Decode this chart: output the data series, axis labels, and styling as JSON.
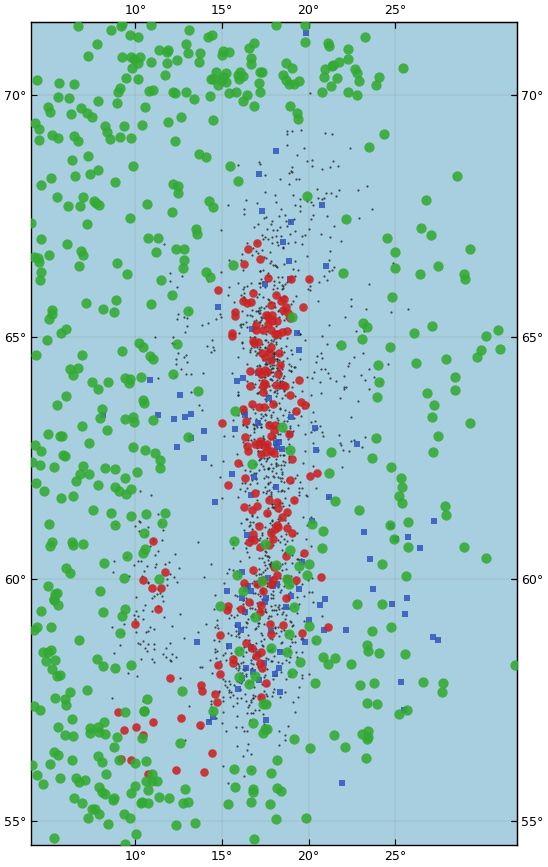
{
  "lon_min": 4.0,
  "lon_max": 32.0,
  "lat_min": 54.5,
  "lat_max": 71.5,
  "xticks": [
    10,
    15,
    20,
    25
  ],
  "yticks": [
    55,
    60,
    65,
    70
  ],
  "ocean_color": "#a8cfe0",
  "land_color": "#f0e8d0",
  "river_color": "#a8cfe0",
  "border_color": "#000000",
  "dot_colors": {
    "black": "#1a1a1a",
    "red": "#cc2222",
    "green": "#33aa33",
    "blue": "#3355bb"
  },
  "figsize": [
    5.48,
    8.67
  ],
  "dpi": 100,
  "centers_black": [
    [
      17.8,
      64.5,
      0.8,
      0.6,
      180
    ],
    [
      17.5,
      63.0,
      0.8,
      0.7,
      160
    ],
    [
      17.2,
      65.8,
      1.0,
      0.8,
      120
    ],
    [
      18.0,
      62.0,
      1.0,
      0.8,
      100
    ],
    [
      17.8,
      60.5,
      1.2,
      0.8,
      130
    ],
    [
      17.5,
      59.5,
      1.2,
      0.7,
      120
    ],
    [
      16.5,
      58.5,
      1.2,
      0.8,
      100
    ],
    [
      18.2,
      59.0,
      1.0,
      0.8,
      80
    ],
    [
      16.0,
      57.5,
      1.2,
      0.8,
      80
    ],
    [
      18.5,
      67.0,
      1.2,
      0.8,
      70
    ],
    [
      19.5,
      68.0,
      1.5,
      0.8,
      60
    ],
    [
      11.0,
      59.0,
      1.0,
      0.8,
      50
    ],
    [
      10.5,
      60.0,
      1.0,
      0.8,
      50
    ],
    [
      13.0,
      65.0,
      1.0,
      0.8,
      40
    ],
    [
      20.5,
      63.5,
      1.5,
      1.0,
      60
    ],
    [
      22.0,
      65.0,
      1.5,
      1.0,
      40
    ]
  ],
  "centers_red": [
    [
      17.8,
      64.5,
      1.0,
      0.7,
      35
    ],
    [
      17.5,
      63.0,
      1.0,
      0.8,
      30
    ],
    [
      17.2,
      65.8,
      1.2,
      0.8,
      25
    ],
    [
      18.0,
      62.0,
      1.0,
      0.8,
      20
    ],
    [
      17.8,
      60.5,
      1.2,
      0.8,
      20
    ],
    [
      17.5,
      59.5,
      1.2,
      0.7,
      18
    ],
    [
      16.5,
      58.5,
      1.2,
      0.8,
      15
    ],
    [
      11.0,
      59.0,
      1.0,
      0.8,
      8
    ],
    [
      10.5,
      56.5,
      0.8,
      0.5,
      8
    ],
    [
      13.5,
      57.0,
      1.0,
      0.7,
      8
    ]
  ],
  "centers_green": [
    [
      6.5,
      62.0,
      3.0,
      2.5,
      90
    ],
    [
      5.0,
      67.0,
      2.0,
      2.0,
      60
    ],
    [
      8.0,
      70.0,
      3.0,
      1.0,
      50
    ],
    [
      15.0,
      70.5,
      3.0,
      0.6,
      45
    ],
    [
      20.0,
      70.5,
      3.0,
      0.6,
      40
    ],
    [
      4.5,
      58.0,
      2.0,
      1.5,
      55
    ],
    [
      8.0,
      56.5,
      2.0,
      1.0,
      35
    ],
    [
      10.0,
      55.5,
      2.0,
      0.8,
      25
    ],
    [
      17.0,
      56.0,
      2.0,
      0.8,
      20
    ],
    [
      22.0,
      57.5,
      2.5,
      1.0,
      20
    ],
    [
      25.0,
      60.5,
      2.0,
      2.0,
      25
    ],
    [
      24.0,
      64.0,
      2.5,
      2.0,
      30
    ],
    [
      28.0,
      65.5,
      2.0,
      2.0,
      20
    ],
    [
      10.5,
      64.0,
      1.5,
      1.5,
      35
    ],
    [
      13.0,
      67.5,
      1.5,
      1.0,
      25
    ],
    [
      17.0,
      59.5,
      1.5,
      1.5,
      20
    ],
    [
      20.0,
      59.5,
      2.0,
      1.5,
      18
    ]
  ],
  "centers_blue": [
    [
      17.8,
      63.0,
      1.5,
      1.2,
      28
    ],
    [
      17.5,
      59.5,
      1.2,
      0.8,
      20
    ],
    [
      16.5,
      58.0,
      1.2,
      0.8,
      18
    ],
    [
      22.0,
      60.5,
      2.0,
      1.5,
      15
    ],
    [
      19.0,
      67.5,
      2.0,
      1.5,
      12
    ],
    [
      12.0,
      64.0,
      1.5,
      1.0,
      12
    ],
    [
      25.0,
      60.0,
      2.0,
      1.5,
      10
    ]
  ]
}
